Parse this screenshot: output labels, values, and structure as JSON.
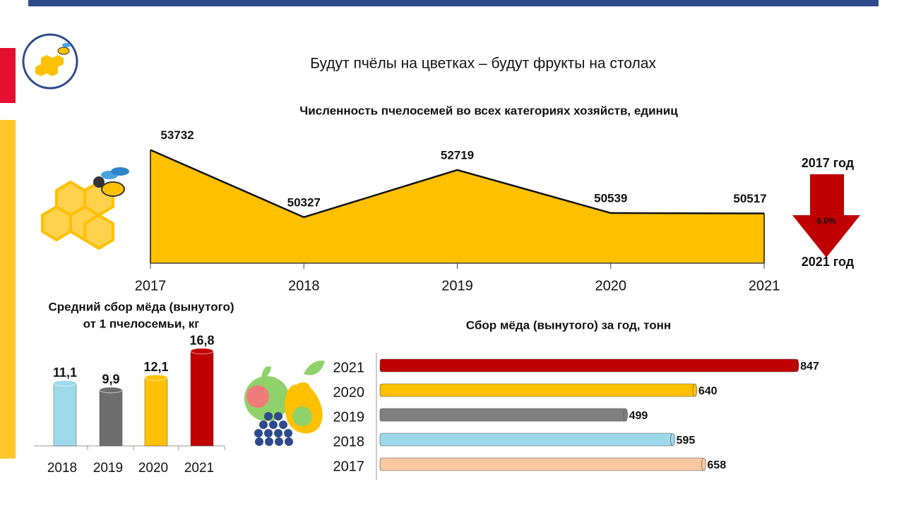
{
  "page_title": "Будут пчёлы на цветках – будут фрукты на столах",
  "chart_data": [
    {
      "type": "area",
      "title": "Численность пчелосемей во всех категориях хозяйств, единиц",
      "categories": [
        "2017",
        "2018",
        "2019",
        "2020",
        "2021"
      ],
      "values": [
        53732,
        50327,
        52719,
        50539,
        50517
      ],
      "color": "#ffc000",
      "ylim": [
        48000,
        54000
      ],
      "annotations": [
        "2017 год",
        "6.0%",
        "2021 год"
      ]
    },
    {
      "type": "cylinder",
      "title": [
        "Средний сбор мёда (вынутого)",
        "от 1 пчелосемьи, кг"
      ],
      "categories": [
        "2018",
        "2019",
        "2020",
        "2021"
      ],
      "values": [
        11.1,
        9.9,
        12.1,
        16.8
      ],
      "value_labels": [
        "11,1",
        "9,9",
        "12,1",
        "16,8"
      ],
      "colors": [
        "#9dd9ea",
        "#6d6d6d",
        "#ffc000",
        "#c00000"
      ],
      "ylim": [
        0,
        18
      ]
    },
    {
      "type": "hbar",
      "title": "Сбор мёда (вынутого) за год, тонн",
      "categories": [
        "2021",
        "2020",
        "2019",
        "2018",
        "2017"
      ],
      "values": [
        847,
        640,
        499,
        595,
        658
      ],
      "colors": [
        "#c00000",
        "#ffc000",
        "#7f7f7f",
        "#9dd9ea",
        "#f8c9a0"
      ],
      "xlim": [
        0,
        900
      ]
    }
  ]
}
